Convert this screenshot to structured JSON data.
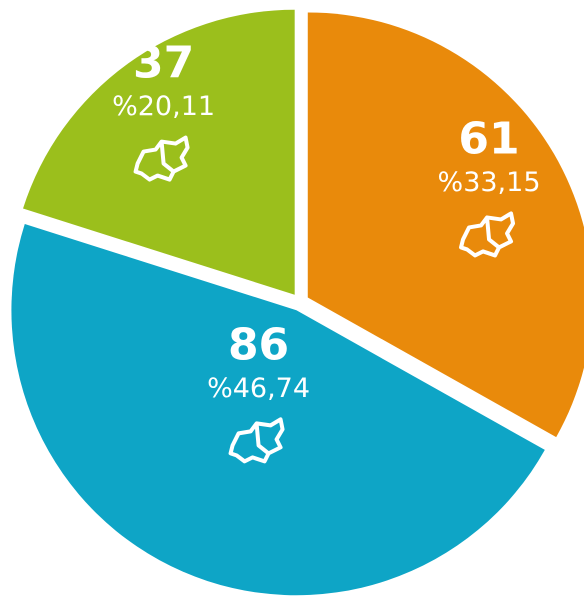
{
  "chart_data": {
    "type": "pie",
    "values": [
      61,
      86,
      37
    ],
    "percent_values": [
      33.15,
      46.74,
      20.11
    ],
    "percent_labels": [
      "%33,15",
      "%46,74",
      "%20,11"
    ],
    "colors": [
      "#e98a0b",
      "#0ea5c6",
      "#9bbf1c"
    ]
  }
}
